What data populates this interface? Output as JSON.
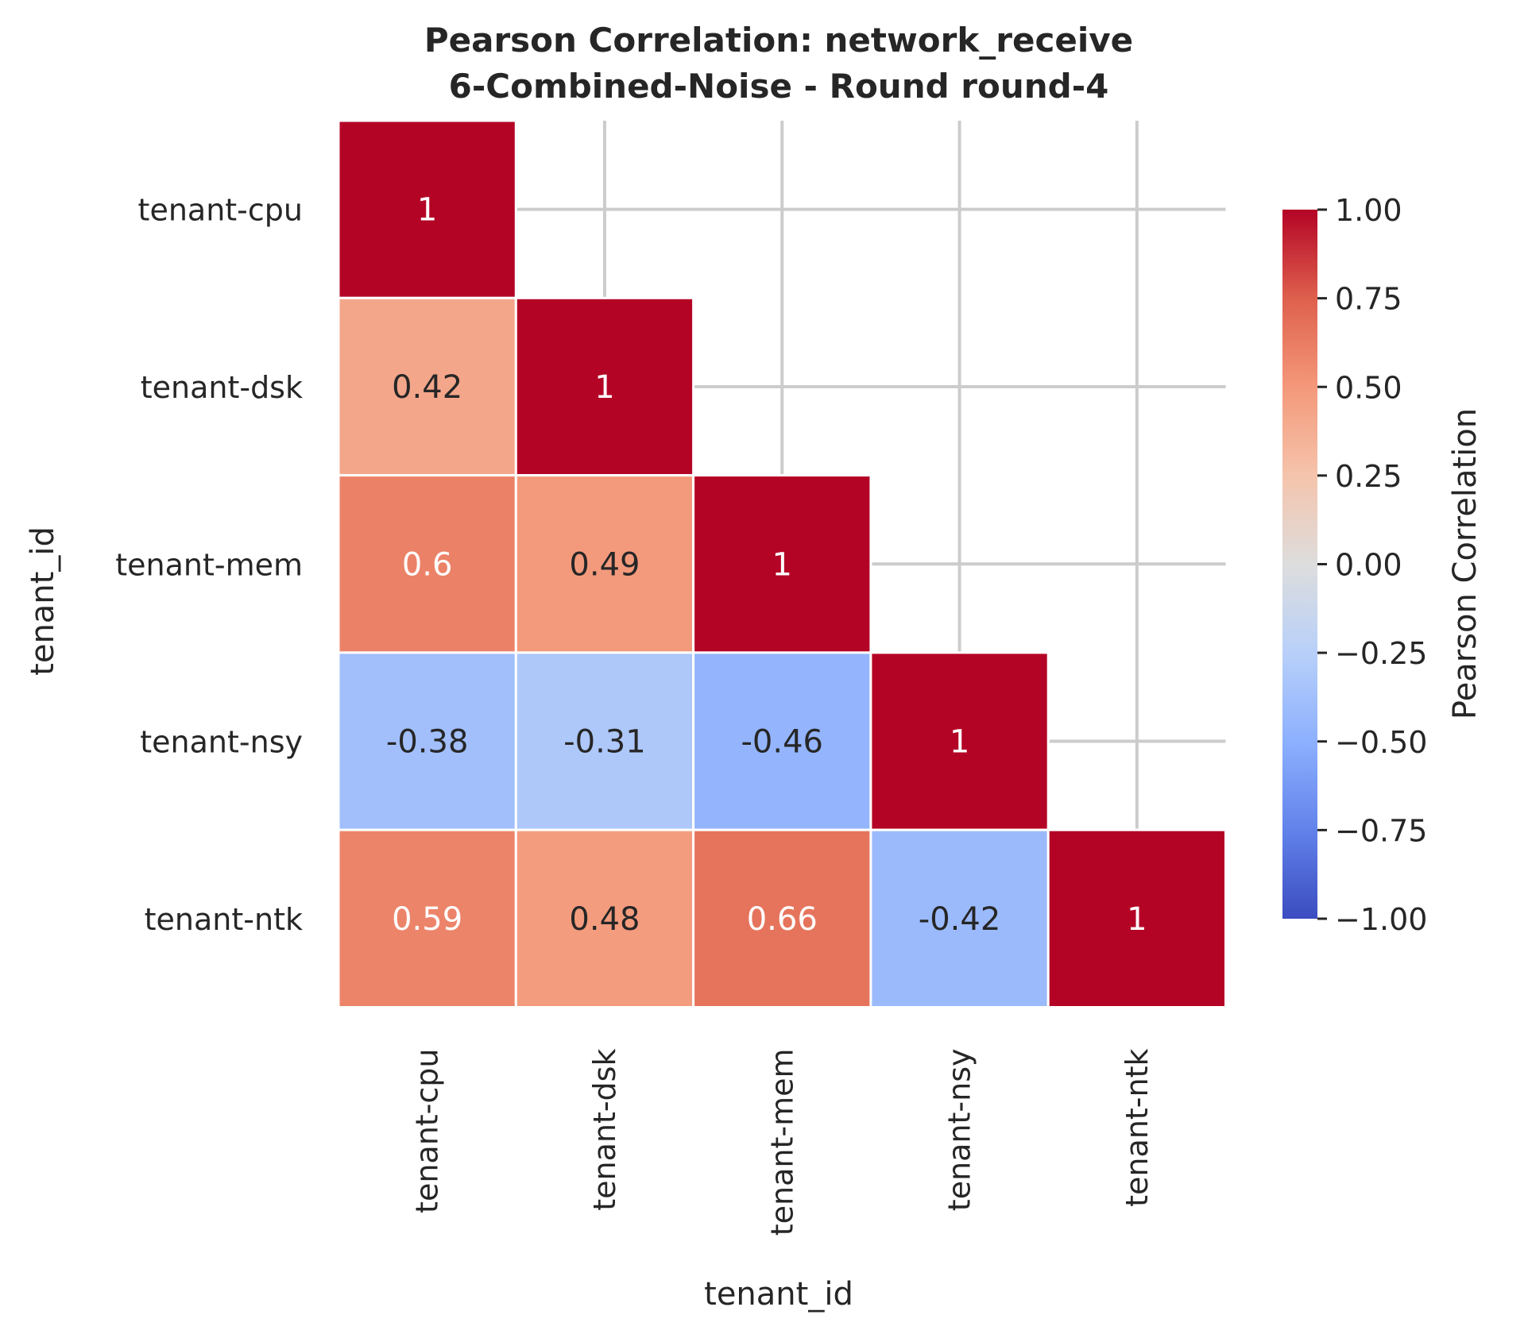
{
  "chart_data": {
    "type": "heatmap",
    "title_line1": "Pearson Correlation: network_receive",
    "title_line2": "6-Combined-Noise - Round round-4",
    "xlabel": "tenant_id",
    "ylabel": "tenant_id",
    "rows": [
      "tenant-cpu",
      "tenant-dsk",
      "tenant-mem",
      "tenant-nsy",
      "tenant-ntk"
    ],
    "cols": [
      "tenant-cpu",
      "tenant-dsk",
      "tenant-mem",
      "tenant-nsy",
      "tenant-ntk"
    ],
    "values": [
      [
        1,
        null,
        null,
        null,
        null
      ],
      [
        0.42,
        1,
        null,
        null,
        null
      ],
      [
        0.6,
        0.49,
        1,
        null,
        null
      ],
      [
        -0.38,
        -0.31,
        -0.46,
        1,
        null
      ],
      [
        0.59,
        0.48,
        0.66,
        -0.42,
        1
      ]
    ],
    "labels": [
      [
        "1",
        "",
        "",
        "",
        ""
      ],
      [
        "0.42",
        "1",
        "",
        "",
        ""
      ],
      [
        "0.6",
        "0.49",
        "1",
        "",
        ""
      ],
      [
        "-0.38",
        "-0.31",
        "-0.46",
        "1",
        ""
      ],
      [
        "0.59",
        "0.48",
        "0.66",
        "-0.42",
        "1"
      ]
    ],
    "mask": "upper-triangle",
    "colormap": "coolwarm",
    "vmin": -1.0,
    "vmax": 1.0,
    "grid": true,
    "colorbar": {
      "label": "Pearson Correlation",
      "ticks": [
        1.0,
        0.75,
        0.5,
        0.25,
        0.0,
        -0.25,
        -0.5,
        -0.75,
        -1.0
      ],
      "tick_labels": [
        "1.00",
        "0.75",
        "0.50",
        "0.25",
        "0.00",
        "−0.25",
        "−0.50",
        "−0.75",
        "−1.00"
      ]
    }
  }
}
